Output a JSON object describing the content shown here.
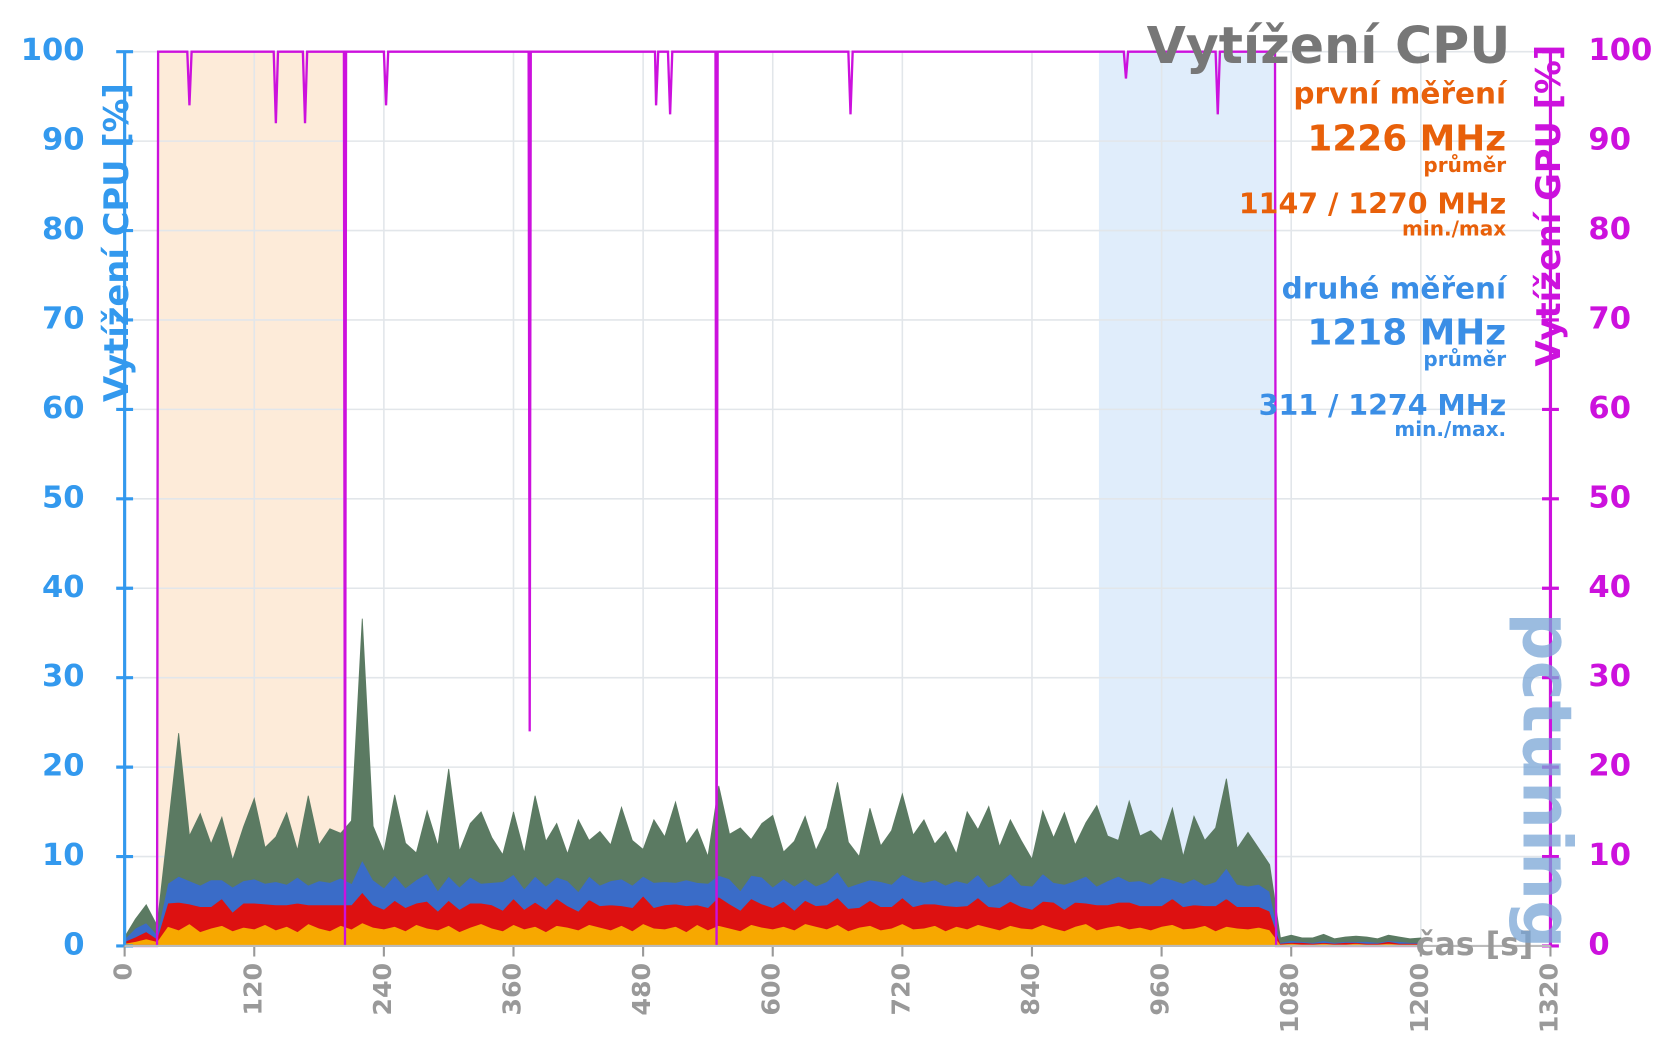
{
  "chart_data": {
    "type": "stacked_area",
    "title": "Vytížení CPU",
    "y_label": "Vytížení CPU [%]",
    "y2_label": "Vytížení GPU [%]",
    "x_label": "čas [s]",
    "watermark": "pctuning",
    "annotations": {
      "first": {
        "heading": "první měření",
        "avg": "1226 MHz",
        "avg_note": "průměr",
        "range": "1147 / 1270 MHz",
        "range_note": "min./max",
        "color": "#e8600a"
      },
      "second": {
        "heading": "druhé měření",
        "avg": "1218 MHz",
        "avg_note": "průměr",
        "range": "311 / 1274 MHz",
        "range_note": "min./max.",
        "color": "#3a8ee6"
      }
    },
    "highlights": [
      {
        "from": 31,
        "to": 204,
        "color": "#fde6d0"
      },
      {
        "from": 902,
        "to": 1066,
        "color": "#d8e8fa"
      }
    ],
    "xlim": [
      0,
      1320
    ],
    "xticks": [
      0,
      120,
      240,
      360,
      480,
      600,
      720,
      840,
      960,
      1080,
      1200,
      1320
    ],
    "ylim": [
      0,
      100
    ],
    "yticks": [
      0,
      10,
      20,
      30,
      40,
      50,
      60,
      70,
      80,
      90,
      100
    ],
    "y2lim": [
      0,
      100
    ],
    "y2ticks": [
      0,
      10,
      20,
      30,
      40,
      50,
      60,
      70,
      80,
      90,
      100
    ],
    "grid": true,
    "x": [
      0,
      10,
      20,
      30,
      40,
      50,
      60,
      70,
      80,
      90,
      100,
      110,
      120,
      130,
      140,
      150,
      160,
      170,
      180,
      190,
      200,
      210,
      220,
      230,
      240,
      250,
      260,
      270,
      280,
      290,
      300,
      310,
      320,
      330,
      340,
      350,
      360,
      370,
      380,
      390,
      400,
      410,
      420,
      430,
      440,
      450,
      460,
      470,
      480,
      490,
      500,
      510,
      520,
      530,
      540,
      550,
      560,
      570,
      580,
      590,
      600,
      610,
      620,
      630,
      640,
      650,
      660,
      670,
      680,
      690,
      700,
      710,
      720,
      730,
      740,
      750,
      760,
      770,
      780,
      790,
      800,
      810,
      820,
      830,
      840,
      850,
      860,
      870,
      880,
      890,
      900,
      910,
      920,
      930,
      940,
      950,
      960,
      970,
      980,
      990,
      1000,
      1010,
      1020,
      1030,
      1040,
      1050,
      1060,
      1070,
      1080,
      1090,
      1100,
      1110,
      1120,
      1130,
      1140,
      1150,
      1160,
      1170,
      1180,
      1190,
      1200
    ],
    "series": [
      {
        "color": "#f7a800",
        "values": [
          0.3,
          0.5,
          0.8,
          0.5,
          2.2,
          1.8,
          2.5,
          1.6,
          2.0,
          2.3,
          1.7,
          2.1,
          1.9,
          2.4,
          1.8,
          2.2,
          1.6,
          2.5,
          2.0,
          1.7,
          2.3,
          1.9,
          2.6,
          2.1,
          1.9,
          2.2,
          1.7,
          2.4,
          2.0,
          1.8,
          2.3,
          1.6,
          2.1,
          2.5,
          2.0,
          1.7,
          2.4,
          1.9,
          2.2,
          1.6,
          2.3,
          2.1,
          1.8,
          2.4,
          2.1,
          1.8,
          2.3,
          1.7,
          2.5,
          2.0,
          1.9,
          2.2,
          1.6,
          2.4,
          1.8,
          2.3,
          2.0,
          1.7,
          2.4,
          2.1,
          1.9,
          2.2,
          1.8,
          2.5,
          2.2,
          1.9,
          2.4,
          1.7,
          2.1,
          2.3,
          1.8,
          2.0,
          2.5,
          1.9,
          2.0,
          2.3,
          1.7,
          2.2,
          1.9,
          2.4,
          2.1,
          1.8,
          2.3,
          2.0,
          1.9,
          2.4,
          2.0,
          1.7,
          2.2,
          2.5,
          1.8,
          2.1,
          2.3,
          1.9,
          2.1,
          1.8,
          2.2,
          2.4,
          1.9,
          2.0,
          2.3,
          1.7,
          2.2,
          2.0,
          1.9,
          2.1,
          1.8,
          0.2,
          0.3,
          0.2,
          0.2,
          0.3,
          0.2,
          0.2,
          0.3,
          0.2,
          0.2,
          0.3,
          0.2,
          0.2,
          0.2
        ]
      },
      {
        "color": "#dd1111",
        "values": [
          0.2,
          0.5,
          0.8,
          0.3,
          2.6,
          3.1,
          2.2,
          2.8,
          2.4,
          3.0,
          2.1,
          2.7,
          2.9,
          2.3,
          2.8,
          2.4,
          3.2,
          2.1,
          2.6,
          2.9,
          2.3,
          2.7,
          3.4,
          2.5,
          2.2,
          2.9,
          2.6,
          2.4,
          3.0,
          2.1,
          2.8,
          2.5,
          2.7,
          2.3,
          2.6,
          2.3,
          2.9,
          2.2,
          2.7,
          2.5,
          3.0,
          2.4,
          2.1,
          2.8,
          2.4,
          2.8,
          2.2,
          2.6,
          3.1,
          2.3,
          2.7,
          2.5,
          2.9,
          2.2,
          2.5,
          3.2,
          2.7,
          2.3,
          2.9,
          2.6,
          2.4,
          2.8,
          2.2,
          2.6,
          2.3,
          2.7,
          3.0,
          2.5,
          2.2,
          2.8,
          2.6,
          2.4,
          2.9,
          2.5,
          2.7,
          2.4,
          2.8,
          2.2,
          2.6,
          3.0,
          2.3,
          2.5,
          2.7,
          2.4,
          2.2,
          2.6,
          2.9,
          2.4,
          2.7,
          2.3,
          2.8,
          2.5,
          2.6,
          3.0,
          2.4,
          2.7,
          2.3,
          2.9,
          2.5,
          2.6,
          2.2,
          2.8,
          3.1,
          2.4,
          2.5,
          2.3,
          2.1,
          0.1,
          0.1,
          0.2,
          0.1,
          0.1,
          0.1,
          0.2,
          0.1,
          0.1,
          0.1,
          0.2,
          0.1,
          0.1,
          0.1
        ]
      },
      {
        "color": "#3a6cc8",
        "values": [
          0.3,
          1,
          1,
          0.5,
          2.2,
          2.9,
          2.6,
          2.4,
          3.0,
          2.1,
          2.8,
          2.5,
          2.7,
          2.3,
          2.6,
          2.3,
          2.9,
          2.2,
          2.7,
          2.5,
          3.0,
          2.4,
          3.6,
          2.8,
          2.4,
          2.8,
          2.2,
          2.6,
          3.1,
          2.3,
          2.7,
          2.5,
          2.9,
          2.2,
          2.5,
          3.2,
          2.7,
          2.3,
          2.9,
          2.6,
          2.4,
          2.8,
          2.2,
          2.6,
          2.3,
          2.7,
          3.0,
          2.5,
          2.2,
          2.8,
          2.6,
          2.4,
          2.9,
          2.5,
          2.7,
          2.4,
          2.8,
          2.2,
          2.6,
          3.0,
          2.3,
          2.5,
          2.7,
          2.4,
          2.2,
          2.6,
          2.9,
          2.4,
          2.7,
          2.3,
          2.8,
          2.5,
          2.6,
          3.0,
          2.4,
          2.7,
          2.3,
          2.9,
          2.5,
          2.6,
          2.2,
          2.8,
          3.1,
          2.4,
          2.6,
          3.1,
          2.2,
          2.8,
          2.4,
          3.0,
          2.1,
          2.7,
          2.9,
          2.3,
          2.8,
          2.4,
          3.2,
          2.1,
          2.6,
          2.9,
          2.3,
          2.7,
          3.4,
          2.5,
          2.3,
          2.5,
          2.2,
          0.1,
          0.2,
          0.1,
          0.1,
          0.2,
          0.1,
          0.1,
          0.1,
          0.2,
          0.1,
          0.1,
          0.2,
          0.1,
          0.1
        ]
      },
      {
        "color": "#5b7a62",
        "values": [
          0.2,
          1,
          2,
          1,
          6,
          16,
          5,
          8,
          4,
          7,
          3,
          6,
          9,
          4,
          5,
          8,
          3,
          10,
          4,
          6,
          5,
          7,
          27,
          6,
          4,
          9,
          5,
          3,
          7,
          5,
          12,
          4,
          6,
          8,
          5,
          3,
          7,
          4,
          9,
          5,
          6,
          3,
          8,
          4,
          6,
          4,
          8,
          5,
          3,
          7,
          5,
          9,
          4,
          6,
          3,
          10,
          5,
          7,
          4,
          6,
          8,
          3,
          5,
          7,
          4,
          6,
          10,
          5,
          3,
          8,
          4,
          6,
          9,
          5,
          7,
          4,
          6,
          3,
          8,
          5,
          9,
          4,
          6,
          5,
          3,
          7,
          5,
          8,
          4,
          6,
          9,
          5,
          4,
          9,
          5,
          6,
          4,
          8,
          3,
          7,
          5,
          6,
          10,
          4,
          6,
          4,
          3,
          0.5,
          0.6,
          0.4,
          0.5,
          0.7,
          0.4,
          0.5,
          0.6,
          0.5,
          0.4,
          0.6,
          0.5,
          0.4,
          0.5
        ]
      },
      {
        "type": "line",
        "axis": "y2",
        "color": "#cc11dd",
        "x": [
          0,
          30,
          31,
          58,
          60,
          62,
          138,
          140,
          142,
          165,
          167,
          169,
          203,
          204,
          205,
          240,
          242,
          244,
          374,
          375,
          376,
          491,
          492,
          494,
          503,
          505,
          507,
          547,
          548,
          549,
          670,
          672,
          674,
          925,
          927,
          929,
          1010,
          1012,
          1014,
          1065,
          1066,
          1200
        ],
        "values": [
          0,
          0,
          100,
          100,
          94,
          100,
          100,
          92,
          100,
          100,
          92,
          100,
          100,
          0,
          100,
          100,
          94,
          100,
          100,
          24,
          100,
          100,
          94,
          100,
          100,
          93,
          100,
          100,
          0,
          100,
          100,
          93,
          100,
          100,
          97,
          100,
          100,
          93,
          100,
          100,
          0,
          0
        ]
      }
    ]
  }
}
